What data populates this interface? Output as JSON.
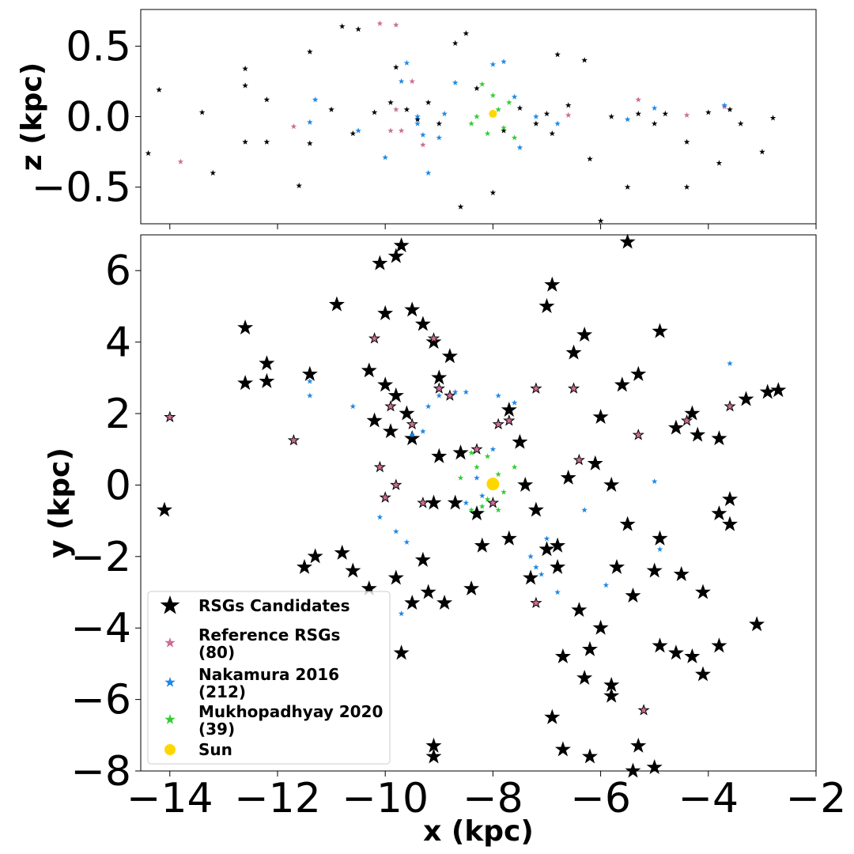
{
  "chart_data": [
    {
      "type": "scatter",
      "ylabel": "z (kpc)",
      "xlim": [
        -14.54,
        -2
      ],
      "ylim": [
        -0.76,
        0.76
      ],
      "xticks": [
        -14,
        -12,
        -10,
        -8,
        -6,
        -4,
        -2
      ],
      "xticklabels": false,
      "yticks": [
        {
          "value": -0.5,
          "label": "−0.5"
        },
        {
          "value": 0,
          "label": "0.0"
        },
        0.5
      ],
      "series": [
        {
          "color": "#000000",
          "marker": "star",
          "x": [
            -14.2,
            -14.4,
            -13.4,
            -13.2,
            -12.6,
            -12.6,
            -12.6,
            -12.2,
            -12.2,
            -11.6,
            -11.4,
            -11.4,
            -10.8,
            -10.5,
            -10.2,
            -9.8,
            -9.6,
            -9.4,
            -9.2,
            -9.0,
            -8.7,
            -8.5,
            -8.6,
            -8.0,
            -7.5,
            -7.2,
            -7.0,
            -6.8,
            -6.6,
            -6.3,
            -6.2,
            -6.0,
            -5.8,
            -5.5,
            -5.3,
            -5.0,
            -4.8,
            -4.4,
            -4.4,
            -4.0,
            -3.8,
            -3.6,
            -3.4,
            -3.0,
            -2.8,
            -10.6,
            -9.9,
            -7.8,
            -8.3,
            -6.9,
            -11.0
          ],
          "values": [
            0.19,
            -0.26,
            0.03,
            -0.4,
            0.34,
            0.22,
            -0.18,
            0.12,
            -0.18,
            -0.49,
            0.46,
            -0.19,
            0.64,
            0.62,
            0.03,
            0.35,
            0.05,
            -0.02,
            0.1,
            -0.05,
            0.52,
            0.59,
            -0.64,
            -0.54,
            0.06,
            -0.05,
            0.02,
            0.44,
            0.08,
            0.4,
            -0.3,
            -0.74,
            0.0,
            -0.5,
            0.02,
            -0.05,
            0.02,
            -0.18,
            -0.5,
            0.03,
            -0.33,
            0.05,
            -0.05,
            -0.25,
            -0.01,
            -0.12,
            0.1,
            -0.1,
            0.2,
            -0.12,
            0.05
          ]
        },
        {
          "color": "#cc6d96",
          "marker": "star",
          "x": [
            -13.8,
            -11.7,
            -10.1,
            -9.8,
            -9.9,
            -9.7,
            -9.5,
            -9.3,
            -9.8,
            -6.6,
            -5.3,
            -4.4,
            -3.7
          ],
          "values": [
            -0.32,
            -0.07,
            0.66,
            0.65,
            -0.1,
            -0.1,
            0.25,
            -0.2,
            0.05,
            0.01,
            0.12,
            0.01,
            0.07
          ]
        },
        {
          "color": "#1e88e5",
          "marker": "star",
          "x": [
            -11.3,
            -11.4,
            -10.5,
            -10.0,
            -9.7,
            -9.6,
            -9.4,
            -9.4,
            -9.3,
            -9.2,
            -8.9,
            -8.7,
            -8.0,
            -7.8,
            -7.6,
            -7.5,
            -7.2,
            -6.8,
            -5.5,
            -5.0,
            -3.7,
            -9.0
          ],
          "values": [
            0.12,
            -0.04,
            -0.1,
            -0.29,
            0.25,
            0.38,
            0.0,
            -0.05,
            -0.13,
            -0.4,
            0.02,
            0.24,
            0.37,
            0.39,
            0.14,
            -0.22,
            0.0,
            -0.05,
            -0.02,
            0.06,
            0.08,
            -0.15
          ]
        },
        {
          "color": "#33cc33",
          "marker": "star",
          "x": [
            -8.2,
            -8.0,
            -7.9,
            -8.3,
            -8.4,
            -7.8,
            -7.7,
            -8.1,
            -7.6
          ],
          "values": [
            0.23,
            0.15,
            0.05,
            0.0,
            -0.05,
            -0.08,
            0.1,
            -0.12,
            -0.15
          ]
        },
        {
          "color": "#ffd700",
          "marker": "circle",
          "x": [
            -8.0
          ],
          "values": [
            0.02
          ]
        }
      ]
    },
    {
      "type": "scatter",
      "xlabel": "x (kpc)",
      "ylabel": "y (kpc)",
      "legend": "lower left",
      "xlim": [
        -14.54,
        -2
      ],
      "ylim": [
        -8,
        7
      ],
      "xticks": [
        {
          "value": -14,
          "label": "−14"
        },
        {
          "value": -12,
          "label": "−12"
        },
        {
          "value": -10,
          "label": "−10"
        },
        {
          "value": -8,
          "label": "−8"
        },
        {
          "value": -6,
          "label": "−6"
        },
        {
          "value": -4,
          "label": "−4"
        },
        {
          "value": -2,
          "label": "−2"
        }
      ],
      "yticks": [
        {
          "value": -8,
          "label": "−8"
        },
        {
          "value": -6,
          "label": "−6"
        },
        {
          "value": -4,
          "label": "−4"
        },
        {
          "value": -2,
          "label": "−2"
        },
        0,
        2,
        4,
        6
      ],
      "series": [
        {
          "name": "RSGs Candidates",
          "color": "#000000",
          "marker": "star",
          "x": [
            -14.1,
            -12.6,
            -12.6,
            -12.2,
            -12.2,
            -11.4,
            -11.5,
            -11.3,
            -10.9,
            -10.8,
            -10.6,
            -10.3,
            -10.1,
            -10.0,
            -9.8,
            -9.7,
            -9.8,
            -9.6,
            -9.5,
            -9.3,
            -9.1,
            -9.0,
            -8.8,
            -9.7,
            -9.5,
            -9.1,
            -9.1,
            -9.3,
            -8.6,
            -8.3,
            -8.2,
            -7.7,
            -7.3,
            -7.0,
            -6.8,
            -7.0,
            -6.9,
            -6.5,
            -6.3,
            -6.0,
            -5.6,
            -5.5,
            -5.3,
            -4.9,
            -4.6,
            -4.3,
            -4.2,
            -3.8,
            -3.3,
            -2.9,
            -2.7,
            -3.6,
            -3.6,
            -3.8,
            -3.1,
            -3.8,
            -4.1,
            -4.3,
            -4.6,
            -4.9,
            -5.0,
            -5.3,
            -5.4,
            -6.2,
            -6.7,
            -6.9,
            -5.8,
            -5.8,
            -6.3,
            -6.2,
            -6.7,
            -4.9,
            -4.1,
            -4.5,
            -5.5,
            -5.8,
            -6.1,
            -6.6,
            -7.4,
            -7.2,
            -8.7,
            -9.0,
            -9.1,
            -9.5,
            -9.9,
            -10.2,
            -10.0,
            -10.3,
            -9.8,
            -9.2,
            -8.4,
            -8.9,
            -7.7,
            -7.5,
            -6.8,
            -6.4,
            -6.0,
            -5.4,
            -5.7,
            -5.0
          ],
          "values": [
            -0.7,
            4.4,
            2.85,
            3.4,
            2.9,
            3.1,
            -2.3,
            -2.0,
            5.05,
            -1.9,
            -2.4,
            3.2,
            6.2,
            4.8,
            6.4,
            6.7,
            2.5,
            2.0,
            4.9,
            4.5,
            4.0,
            3.0,
            3.6,
            -4.7,
            -3.3,
            -7.3,
            -7.6,
            -2.1,
            0.9,
            -0.8,
            -1.7,
            -1.5,
            -2.6,
            -1.8,
            -1.7,
            5.0,
            5.6,
            3.7,
            4.2,
            1.9,
            2.8,
            6.8,
            3.1,
            4.3,
            1.6,
            2.0,
            1.4,
            1.3,
            2.4,
            2.6,
            2.65,
            -0.4,
            -1.1,
            -0.8,
            -3.9,
            -4.5,
            -5.3,
            -4.8,
            -4.7,
            -4.5,
            -7.9,
            -7.3,
            -8.0,
            -7.6,
            -7.4,
            -6.5,
            -5.6,
            -5.9,
            -5.4,
            -4.6,
            -4.8,
            -1.5,
            -3.0,
            -2.5,
            -1.1,
            0.0,
            0.6,
            0.2,
            0.0,
            -0.7,
            -0.5,
            0.8,
            -0.5,
            1.3,
            1.5,
            1.8,
            2.8,
            -2.9,
            -2.6,
            -3.0,
            -2.9,
            -3.3,
            2.1,
            1.2,
            -2.3,
            -3.5,
            -4.0,
            -3.1,
            -2.3,
            -2.4
          ]
        },
        {
          "name": "Reference RSGs\n(80)",
          "color": "#cc6d96",
          "marker": "star",
          "x": [
            -14.0,
            -11.7,
            -10.2,
            -10.1,
            -10.0,
            -9.8,
            -9.5,
            -9.9,
            -9.1,
            -9.0,
            -8.8,
            -8.3,
            -7.9,
            -7.7,
            -7.2,
            -6.5,
            -7.2,
            -6.4,
            -5.3,
            -5.2,
            -4.4,
            -3.6,
            -9.3,
            -8.0
          ],
          "values": [
            1.9,
            1.25,
            4.1,
            0.5,
            -0.35,
            0.0,
            1.7,
            2.2,
            4.1,
            2.7,
            2.5,
            1.0,
            1.7,
            1.8,
            2.7,
            2.7,
            -3.3,
            0.7,
            1.4,
            -6.3,
            1.8,
            2.2,
            -0.5,
            -0.5
          ]
        },
        {
          "name": "Nakamura 2016\n(212)",
          "color": "#1e88e5",
          "marker": "star",
          "x": [
            -11.4,
            -11.4,
            -10.6,
            -10.1,
            -9.8,
            -9.5,
            -9.3,
            -9.2,
            -9.0,
            -8.7,
            -8.5,
            -7.9,
            -7.6,
            -8.0,
            -8.3,
            -8.5,
            -7.2,
            -7.1,
            -7.3,
            -6.8,
            -6.3,
            -5.9,
            -5.0,
            -4.9,
            -3.6,
            -9.7,
            -9.6,
            -7.0,
            -8.2
          ],
          "values": [
            2.9,
            2.5,
            2.2,
            -0.9,
            -1.3,
            1.4,
            1.5,
            2.2,
            2.5,
            2.6,
            2.6,
            2.5,
            2.3,
            1.0,
            0.2,
            -0.5,
            -2.3,
            -2.5,
            -2.0,
            -3.0,
            -0.7,
            -2.8,
            0.1,
            -1.8,
            3.4,
            -3.6,
            -1.6,
            -1.5,
            -0.3
          ]
        },
        {
          "name": "Mukhopadhyay 2020\n(39)",
          "color": "#33cc33",
          "marker": "star",
          "x": [
            -8.4,
            -8.3,
            -8.1,
            -7.9,
            -8.0,
            -7.8,
            -8.1,
            -8.2,
            -7.9,
            -8.6,
            -8.4,
            -7.6
          ],
          "values": [
            0.9,
            0.5,
            0.8,
            0.3,
            0.0,
            -0.2,
            -0.4,
            -0.6,
            -0.7,
            0.2,
            -0.7,
            0.5
          ]
        },
        {
          "name": "Sun",
          "color": "#ffd700",
          "marker": "circle",
          "x": [
            -8.0
          ],
          "values": [
            0.03
          ]
        }
      ]
    }
  ]
}
